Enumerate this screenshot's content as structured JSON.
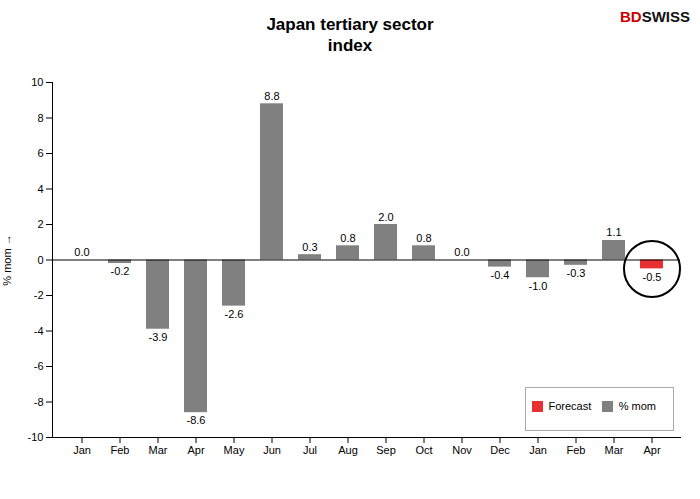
{
  "chart_data": {
    "type": "bar",
    "title": "Japan tertiary sector\nindex",
    "categories": [
      "Jan",
      "Feb",
      "Mar",
      "Apr",
      "May",
      "Jun",
      "Jul",
      "Aug",
      "Sep",
      "Oct",
      "Nov",
      "Dec",
      "Jan",
      "Feb",
      "Mar",
      "Apr"
    ],
    "series": [
      {
        "name": "Forecast",
        "color": "#e83030",
        "values": [
          null,
          null,
          null,
          null,
          null,
          null,
          null,
          null,
          null,
          null,
          null,
          null,
          null,
          null,
          null,
          -0.5
        ],
        "value_labels": [
          null,
          null,
          null,
          null,
          null,
          null,
          null,
          null,
          null,
          null,
          null,
          null,
          null,
          null,
          null,
          "-0.5"
        ]
      },
      {
        "name": "% mom",
        "color": "#808080",
        "values": [
          0.0,
          -0.2,
          -3.9,
          -8.6,
          -2.6,
          8.8,
          0.3,
          0.8,
          2.0,
          0.8,
          0.0,
          -0.4,
          -1.0,
          -0.3,
          1.1,
          null
        ],
        "value_labels": [
          "0.0",
          "-0.2",
          "-3.9",
          "-8.6",
          "-2.6",
          "8.8",
          "0.3",
          "0.8",
          "2.0",
          "0.8",
          "0.0",
          "-0.4",
          "-1.0",
          "-0.3",
          "1.1",
          null
        ]
      }
    ],
    "ylabel": "% mom",
    "ylim": [
      -10,
      10
    ],
    "yticks": [
      -10,
      -8,
      -6,
      -4,
      -2,
      0,
      2,
      4,
      6,
      8,
      10
    ],
    "grid": false,
    "legend": "lower right",
    "data_labels": true,
    "annotations": [
      {
        "text": "BD",
        "color": "#cc0000"
      },
      {
        "text": "SWISS",
        "color": "#111111"
      }
    ]
  }
}
